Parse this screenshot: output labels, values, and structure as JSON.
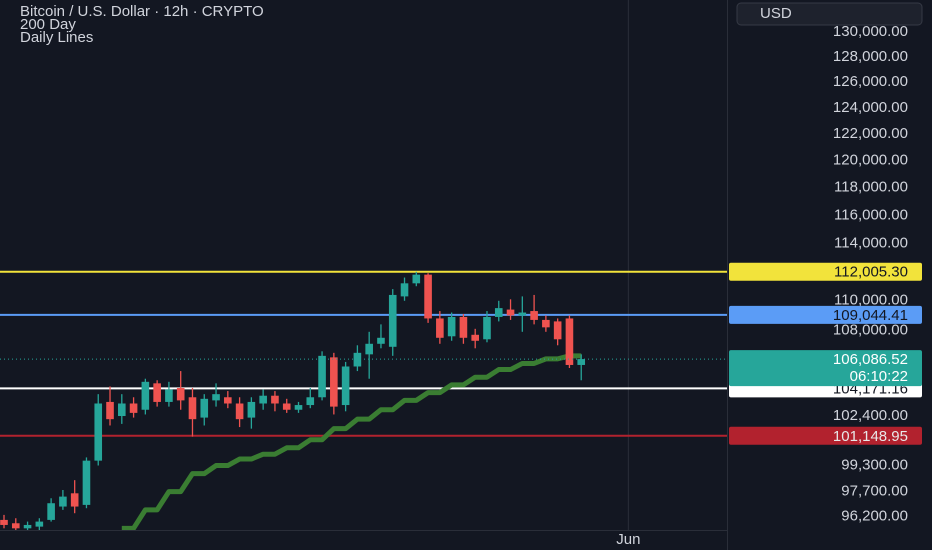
{
  "chart_data": {
    "type": "candlestick",
    "title": "Bitcoin / U.S. Dollar · 12h · CRYPTO",
    "subtitle": "Daily Lines",
    "currency": "USD",
    "log_scale": true,
    "up_color": "#26a69a",
    "down_color": "#ef5350",
    "ylim": [
      95400,
      132600
    ],
    "yticks": [
      {
        "value": 130000,
        "label": "130,000.00"
      },
      {
        "value": 128000,
        "label": "128,000.00"
      },
      {
        "value": 126000,
        "label": "126,000.00"
      },
      {
        "value": 124000,
        "label": "124,000.00"
      },
      {
        "value": 122000,
        "label": "122,000.00"
      },
      {
        "value": 120000,
        "label": "120,000.00"
      },
      {
        "value": 118000,
        "label": "118,000.00"
      },
      {
        "value": 116000,
        "label": "116,000.00"
      },
      {
        "value": 114000,
        "label": "114,000.00"
      },
      {
        "value": 110000,
        "label": "110,000.00"
      },
      {
        "value": 108000,
        "label": "108,000.00"
      },
      {
        "value": 102400,
        "label": "102,400.00"
      },
      {
        "value": 99300,
        "label": "99,300.00"
      },
      {
        "value": 97700,
        "label": "97,700.00"
      },
      {
        "value": 96200,
        "label": "96,200.00"
      }
    ],
    "categories": [
      null,
      null,
      null,
      null,
      null,
      null,
      null,
      null,
      null,
      null,
      null,
      null,
      null,
      null,
      null,
      null,
      null,
      null,
      null,
      null,
      null,
      null,
      null,
      null,
      null,
      null,
      null,
      null,
      null,
      null,
      null,
      null,
      null,
      null,
      null,
      null,
      null,
      null,
      null,
      null,
      null,
      null,
      null,
      null,
      null,
      null,
      null,
      null,
      null,
      null,
      null,
      null,
      null,
      "Jun"
    ],
    "open": [
      96000,
      95800,
      95500,
      95600,
      96000,
      96800,
      97600,
      96900,
      99600,
      103300,
      102400,
      103200,
      102800,
      104500,
      103300,
      104200,
      103600,
      102300,
      103400,
      103600,
      103200,
      102300,
      103200,
      103700,
      103200,
      102800,
      103100,
      103600,
      106200,
      103100,
      105600,
      106400,
      107100,
      106900,
      110300,
      111200,
      111800,
      108800,
      107600,
      108900,
      107700,
      107400,
      108900,
      109400,
      109000,
      109300,
      108700,
      108600,
      108800,
      105700,
      null,
      null,
      null,
      null
    ],
    "high": [
      96300,
      96100,
      95900,
      96100,
      97300,
      97800,
      98400,
      99800,
      103800,
      104300,
      103800,
      103600,
      104800,
      104700,
      104600,
      105300,
      104200,
      103800,
      104500,
      104000,
      103600,
      103600,
      104100,
      104000,
      103500,
      103300,
      104200,
      106600,
      106500,
      105900,
      107000,
      107900,
      108400,
      110800,
      111600,
      112000,
      111900,
      109300,
      109200,
      109100,
      108100,
      109300,
      110000,
      110100,
      110300,
      110400,
      109000,
      108800,
      109000,
      106400,
      null,
      null,
      null,
      null
    ],
    "low": [
      95500,
      95400,
      95300,
      95400,
      95900,
      96600,
      96400,
      96700,
      99300,
      101800,
      101900,
      102300,
      102500,
      103000,
      103000,
      102800,
      101100,
      101800,
      103000,
      102900,
      101700,
      101600,
      102800,
      102700,
      102600,
      102600,
      102900,
      103400,
      102500,
      102700,
      105300,
      104800,
      106800,
      106300,
      110000,
      111000,
      108500,
      107100,
      107300,
      107100,
      106800,
      107200,
      108600,
      108700,
      107900,
      108400,
      107900,
      107000,
      105500,
      104700,
      null,
      null,
      null,
      null
    ],
    "close": [
      95700,
      95500,
      95700,
      95900,
      97000,
      97400,
      96800,
      99600,
      103200,
      102200,
      103200,
      102600,
      104600,
      103300,
      104100,
      103400,
      102200,
      103500,
      103800,
      103200,
      102200,
      103300,
      103700,
      103200,
      102800,
      103100,
      103600,
      106300,
      103000,
      105600,
      106500,
      107100,
      107500,
      110400,
      111200,
      111800,
      108800,
      107500,
      108900,
      107500,
      107300,
      108900,
      109500,
      109000,
      109200,
      108700,
      108200,
      107400,
      105700,
      106086.52,
      null,
      null,
      null,
      null
    ],
    "series": [
      {
        "name": "200 Day",
        "color": "#3a7d32",
        "values": [
          null,
          null,
          null,
          null,
          null,
          null,
          null,
          null,
          null,
          null,
          95500,
          95500,
          96600,
          96600,
          97700,
          97700,
          98800,
          98800,
          99300,
          99300,
          99700,
          99700,
          100000,
          100000,
          100400,
          100400,
          100900,
          100900,
          101600,
          101600,
          102200,
          102200,
          102800,
          102800,
          103400,
          103400,
          103900,
          103900,
          104400,
          104400,
          104900,
          104900,
          105400,
          105400,
          105800,
          105800,
          106100,
          106100,
          106300,
          106300,
          null,
          null,
          null,
          null
        ]
      }
    ],
    "price_lines": [
      {
        "value": 112005.3,
        "label": "112,005.30",
        "color": "#f2e33b",
        "text_color": "#131722"
      },
      {
        "value": 109044.41,
        "label": "109,044.41",
        "color": "#5b9cf6",
        "text_color": "#131722"
      },
      {
        "value": 104171.16,
        "label": "104,171.16",
        "color": "#ffffff",
        "text_color": "#131722"
      },
      {
        "value": 101148.95,
        "label": "101,148.95",
        "color": "#b2222e",
        "text_color": "#e8e8e8"
      }
    ],
    "last_price": {
      "value": 106086.52,
      "label": "106,086.52",
      "countdown": "06:10:22",
      "color": "#26a69a"
    }
  }
}
